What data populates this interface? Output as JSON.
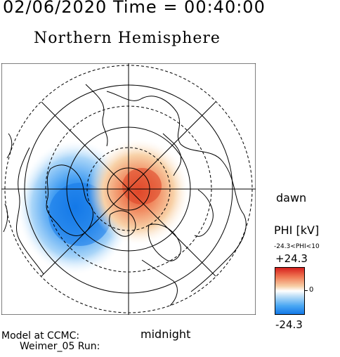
{
  "header": {
    "datetime": "02/06/2020 Time = 00:40:00",
    "hemisphere": "Northern Hemisphere"
  },
  "map": {
    "projection": "polar-stereographic",
    "pole": "north",
    "orientation_labels": {
      "right": "dawn",
      "bottom": "midnight"
    },
    "field": "electric potential PHI",
    "negative_cell": {
      "color": "#1479e8",
      "location": "dusk-side (left), pre-midnight"
    },
    "positive_cell": {
      "color": "#e0482a",
      "location": "dawn-side (right), centered near pole"
    },
    "latitude_rings": [
      "solid",
      "dashed",
      "solid",
      "dashed",
      "solid",
      "dashed"
    ],
    "meridian_lines": 8
  },
  "colorbar": {
    "title": "PHI [kV]",
    "range_text": "-24.3<PHI<10",
    "max_label": "+24.3",
    "zero_label": "0",
    "min_label": "-24.3",
    "colors": {
      "top": "#d6201d",
      "middle": "#ffffff",
      "bottom": "#1479e8"
    }
  },
  "footer": {
    "line1": "Model at CCMC:",
    "line2": "Weimer_05 Run:"
  }
}
